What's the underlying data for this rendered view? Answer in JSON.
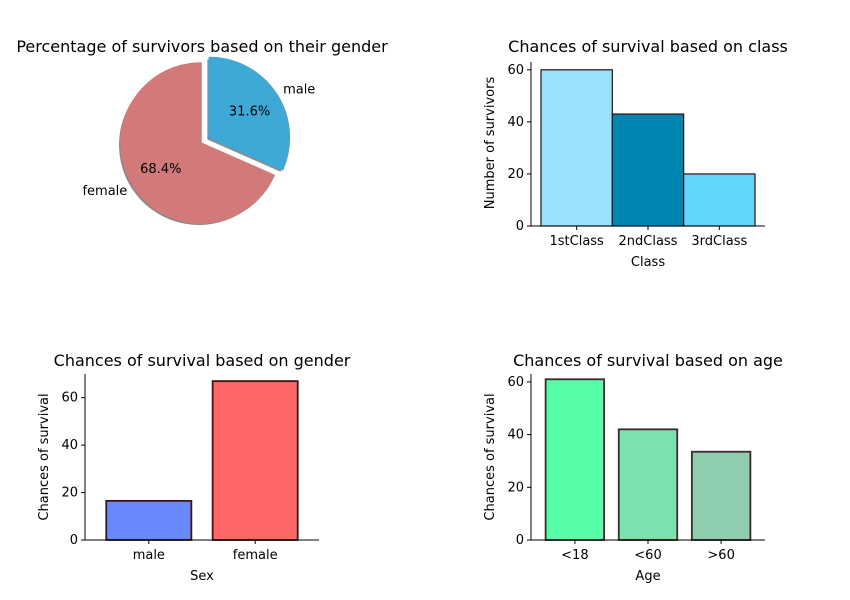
{
  "chart_data": [
    {
      "type": "pie",
      "title": "Percentage of survivors based on their gender",
      "slices": [
        {
          "label": "male",
          "value": 31.6,
          "pct_label": "31.6%",
          "color": "#3ea8d6",
          "explode": true
        },
        {
          "label": "female",
          "value": 68.4,
          "pct_label": "68.4%",
          "color": "#d27a79",
          "explode": false
        }
      ],
      "shadow": true
    },
    {
      "type": "bar",
      "title": "Chances of survival based on class",
      "categories": [
        "1stClass",
        "2ndClass",
        "3rdClass"
      ],
      "values": [
        60,
        43,
        20
      ],
      "colors": [
        "#98e3fb",
        "#0086b3",
        "#62d7fc"
      ],
      "edgecolor": "#2b1010",
      "xlabel": "Class",
      "ylabel": "Number of survivors",
      "ylim": [
        0,
        63
      ],
      "yticks": [
        0,
        20,
        40,
        60
      ]
    },
    {
      "type": "bar",
      "title": "Chances of survival based on gender",
      "categories": [
        "male",
        "female"
      ],
      "values": [
        16.5,
        67
      ],
      "colors": [
        "#6888fd",
        "#fe6566"
      ],
      "edgecolor": "#3e1414",
      "xlabel": "Sex",
      "ylabel": "Chances of survival",
      "ylim": [
        0,
        70
      ],
      "yticks": [
        0,
        20,
        40,
        60
      ]
    },
    {
      "type": "bar",
      "title": "Chances of survival based on age",
      "categories": [
        "<18",
        "<60",
        ">60"
      ],
      "values": [
        61,
        42,
        33.5
      ],
      "colors": [
        "#56fea9",
        "#7be2ae",
        "#8ecdae"
      ],
      "edgecolor": "#3b2a2a",
      "xlabel": "Age",
      "ylabel": "Chances of survival",
      "ylim": [
        0,
        63
      ],
      "yticks": [
        0,
        20,
        40,
        60
      ]
    }
  ]
}
